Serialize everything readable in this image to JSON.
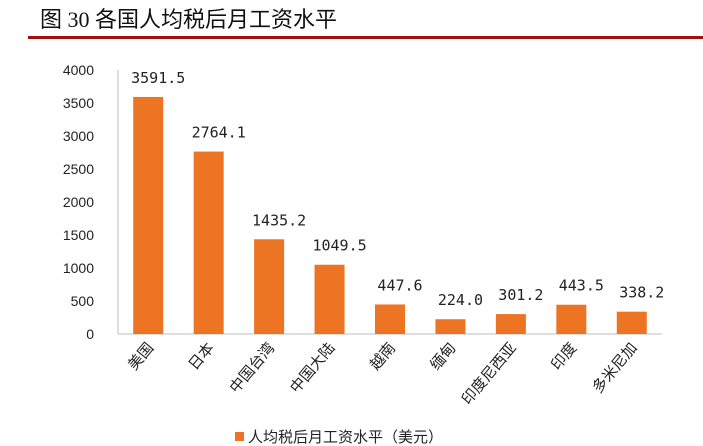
{
  "chart_data": {
    "type": "bar",
    "title": "图 30 各国人均税后月工资水平",
    "categories": [
      "美国",
      "日本",
      "中国台湾",
      "中国大陆",
      "越南",
      "缅甸",
      "印度尼西亚",
      "印度",
      "多米尼加"
    ],
    "values": [
      3591.5,
      2764.1,
      1435.2,
      1049.5,
      447.6,
      224.0,
      301.2,
      443.5,
      338.2
    ],
    "data_labels": [
      "3591.5",
      "2764.1",
      "1435.2",
      "1049.5",
      "447.6",
      "224.0",
      "301.2",
      "443.5",
      "338.2"
    ],
    "yticks": [
      "0",
      "500",
      "1000",
      "1500",
      "2000",
      "2500",
      "3000",
      "3500",
      "4000"
    ],
    "ylim": [
      0,
      4000
    ],
    "xlabel": "",
    "ylabel": "",
    "legend": [
      "人均税后月工资水平（美元）"
    ],
    "legend_position": "bottom",
    "grid": false,
    "bar_color": "#ed7422",
    "title_rule_color": "#a40f0f"
  }
}
